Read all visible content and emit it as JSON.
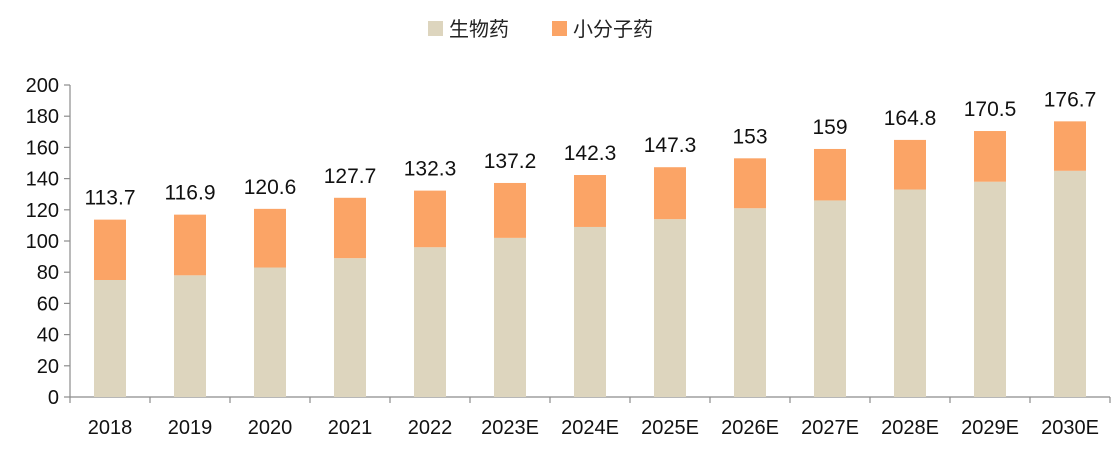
{
  "chart_data": {
    "type": "bar",
    "stacked": true,
    "categories": [
      "2018",
      "2019",
      "2020",
      "2021",
      "2022",
      "2023E",
      "2024E",
      "2025E",
      "2026E",
      "2027E",
      "2028E",
      "2029E",
      "2030E"
    ],
    "series": [
      {
        "name": "生物药",
        "color": "#DDD5BE",
        "values": [
          75,
          78,
          83,
          89,
          96,
          102,
          109,
          114,
          121,
          126,
          133,
          138,
          145
        ]
      },
      {
        "name": "小分子药",
        "color": "#FBA466",
        "values": [
          38.7,
          38.9,
          37.6,
          38.7,
          36.3,
          35.2,
          33.3,
          33.3,
          32,
          33,
          31.8,
          32.5,
          31.7
        ]
      }
    ],
    "totals": [
      "113.7",
      "116.9",
      "120.6",
      "127.7",
      "132.3",
      "137.2",
      "142.3",
      "147.3",
      "153",
      "159",
      "164.8",
      "170.5",
      "176.7"
    ],
    "yticks": [
      "0",
      "20",
      "40",
      "60",
      "80",
      "100",
      "120",
      "140",
      "160",
      "180",
      "200"
    ],
    "ylim": [
      0,
      200
    ],
    "legend_position": "top-center",
    "grid": false,
    "title": "",
    "xlabel": "",
    "ylabel": ""
  }
}
